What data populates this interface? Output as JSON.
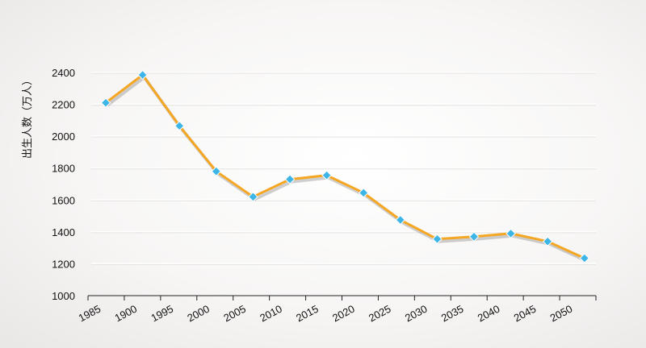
{
  "chart_data": {
    "type": "line",
    "title": "",
    "xlabel": "",
    "ylabel": "出生人数（万人）",
    "x_tick_labels": [
      "1985",
      "1900",
      "1995",
      "2000",
      "2005",
      "2010",
      "2015",
      "2020",
      "2025",
      "2030",
      "2035",
      "2040",
      "2045",
      "2050"
    ],
    "y_tick_labels": [
      "1000",
      "1200",
      "1400",
      "1600",
      "1800",
      "2000",
      "2200",
      "2400"
    ],
    "ylim": [
      1000,
      2400
    ],
    "grid": true,
    "legend": "none",
    "series": [
      {
        "line_color": "#F5A623",
        "marker_color": "#3DB5E6",
        "marker": "diamond",
        "values": [
          2210,
          2385,
          2065,
          1780,
          1620,
          1730,
          1755,
          1645,
          1475,
          1355,
          1370,
          1390,
          1340,
          1235
        ]
      }
    ]
  }
}
